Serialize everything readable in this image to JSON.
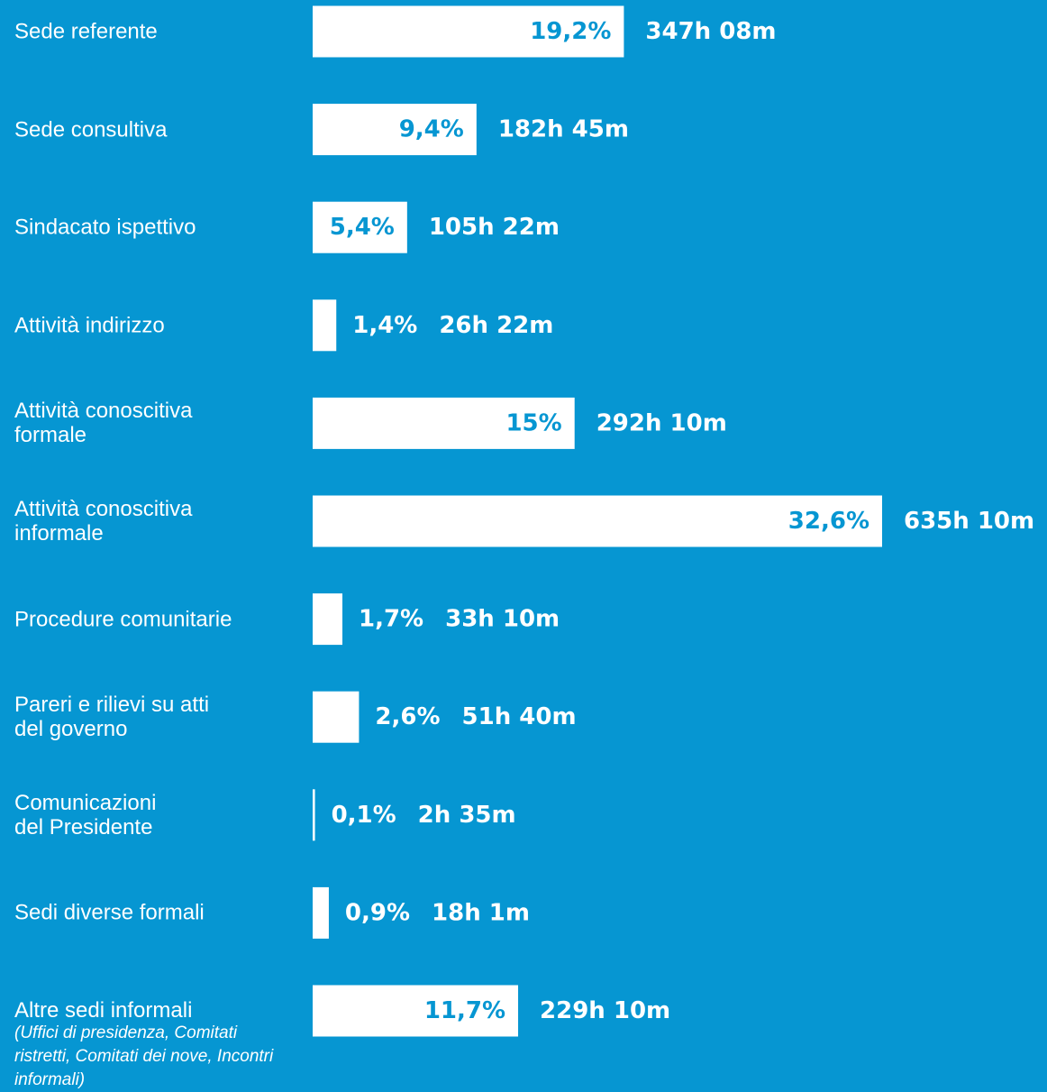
{
  "chart_data": {
    "type": "bar",
    "orientation": "horizontal",
    "color": "#ffffff",
    "background": "#0696d2",
    "categories": [
      "Sede referente",
      "Sede consultiva",
      "Sindacato ispettivo",
      "Attività indirizzo",
      "Attività conoscitiva\nformale",
      "Attività conoscitiva\ninformale",
      "Procedure comunitarie",
      "Pareri e rilievi su atti\ndel governo",
      "Comunicazioni\ndel Presidente",
      "Sedi diverse formali",
      "Altre sedi informali"
    ],
    "note": "(Uffici di presidenza, Comitati ristretti, Comitati dei nove, Incontri informali)",
    "values": [
      347.13,
      182.75,
      105.37,
      26.37,
      292.17,
      635.17,
      33.17,
      51.67,
      2.58,
      18.02,
      229.17
    ],
    "value_labels": [
      "347h 08m",
      "182h 45m",
      "105h 22m",
      "26h 22m",
      "292h 10m",
      "635h 10m",
      "33h 10m",
      "51h 40m",
      "2h 35m",
      "18h 1m",
      "229h 10m"
    ],
    "shares": [
      19.2,
      9.4,
      5.4,
      1.4,
      15,
      32.6,
      1.7,
      2.6,
      0.1,
      0.9,
      11.7
    ],
    "share_labels": [
      "19,2%",
      "9,4%",
      "5,4%",
      "1,4%",
      "15%",
      "32,6%",
      "1,7%",
      "2,6%",
      "0,1%",
      "0,9%",
      "11,7%"
    ]
  }
}
